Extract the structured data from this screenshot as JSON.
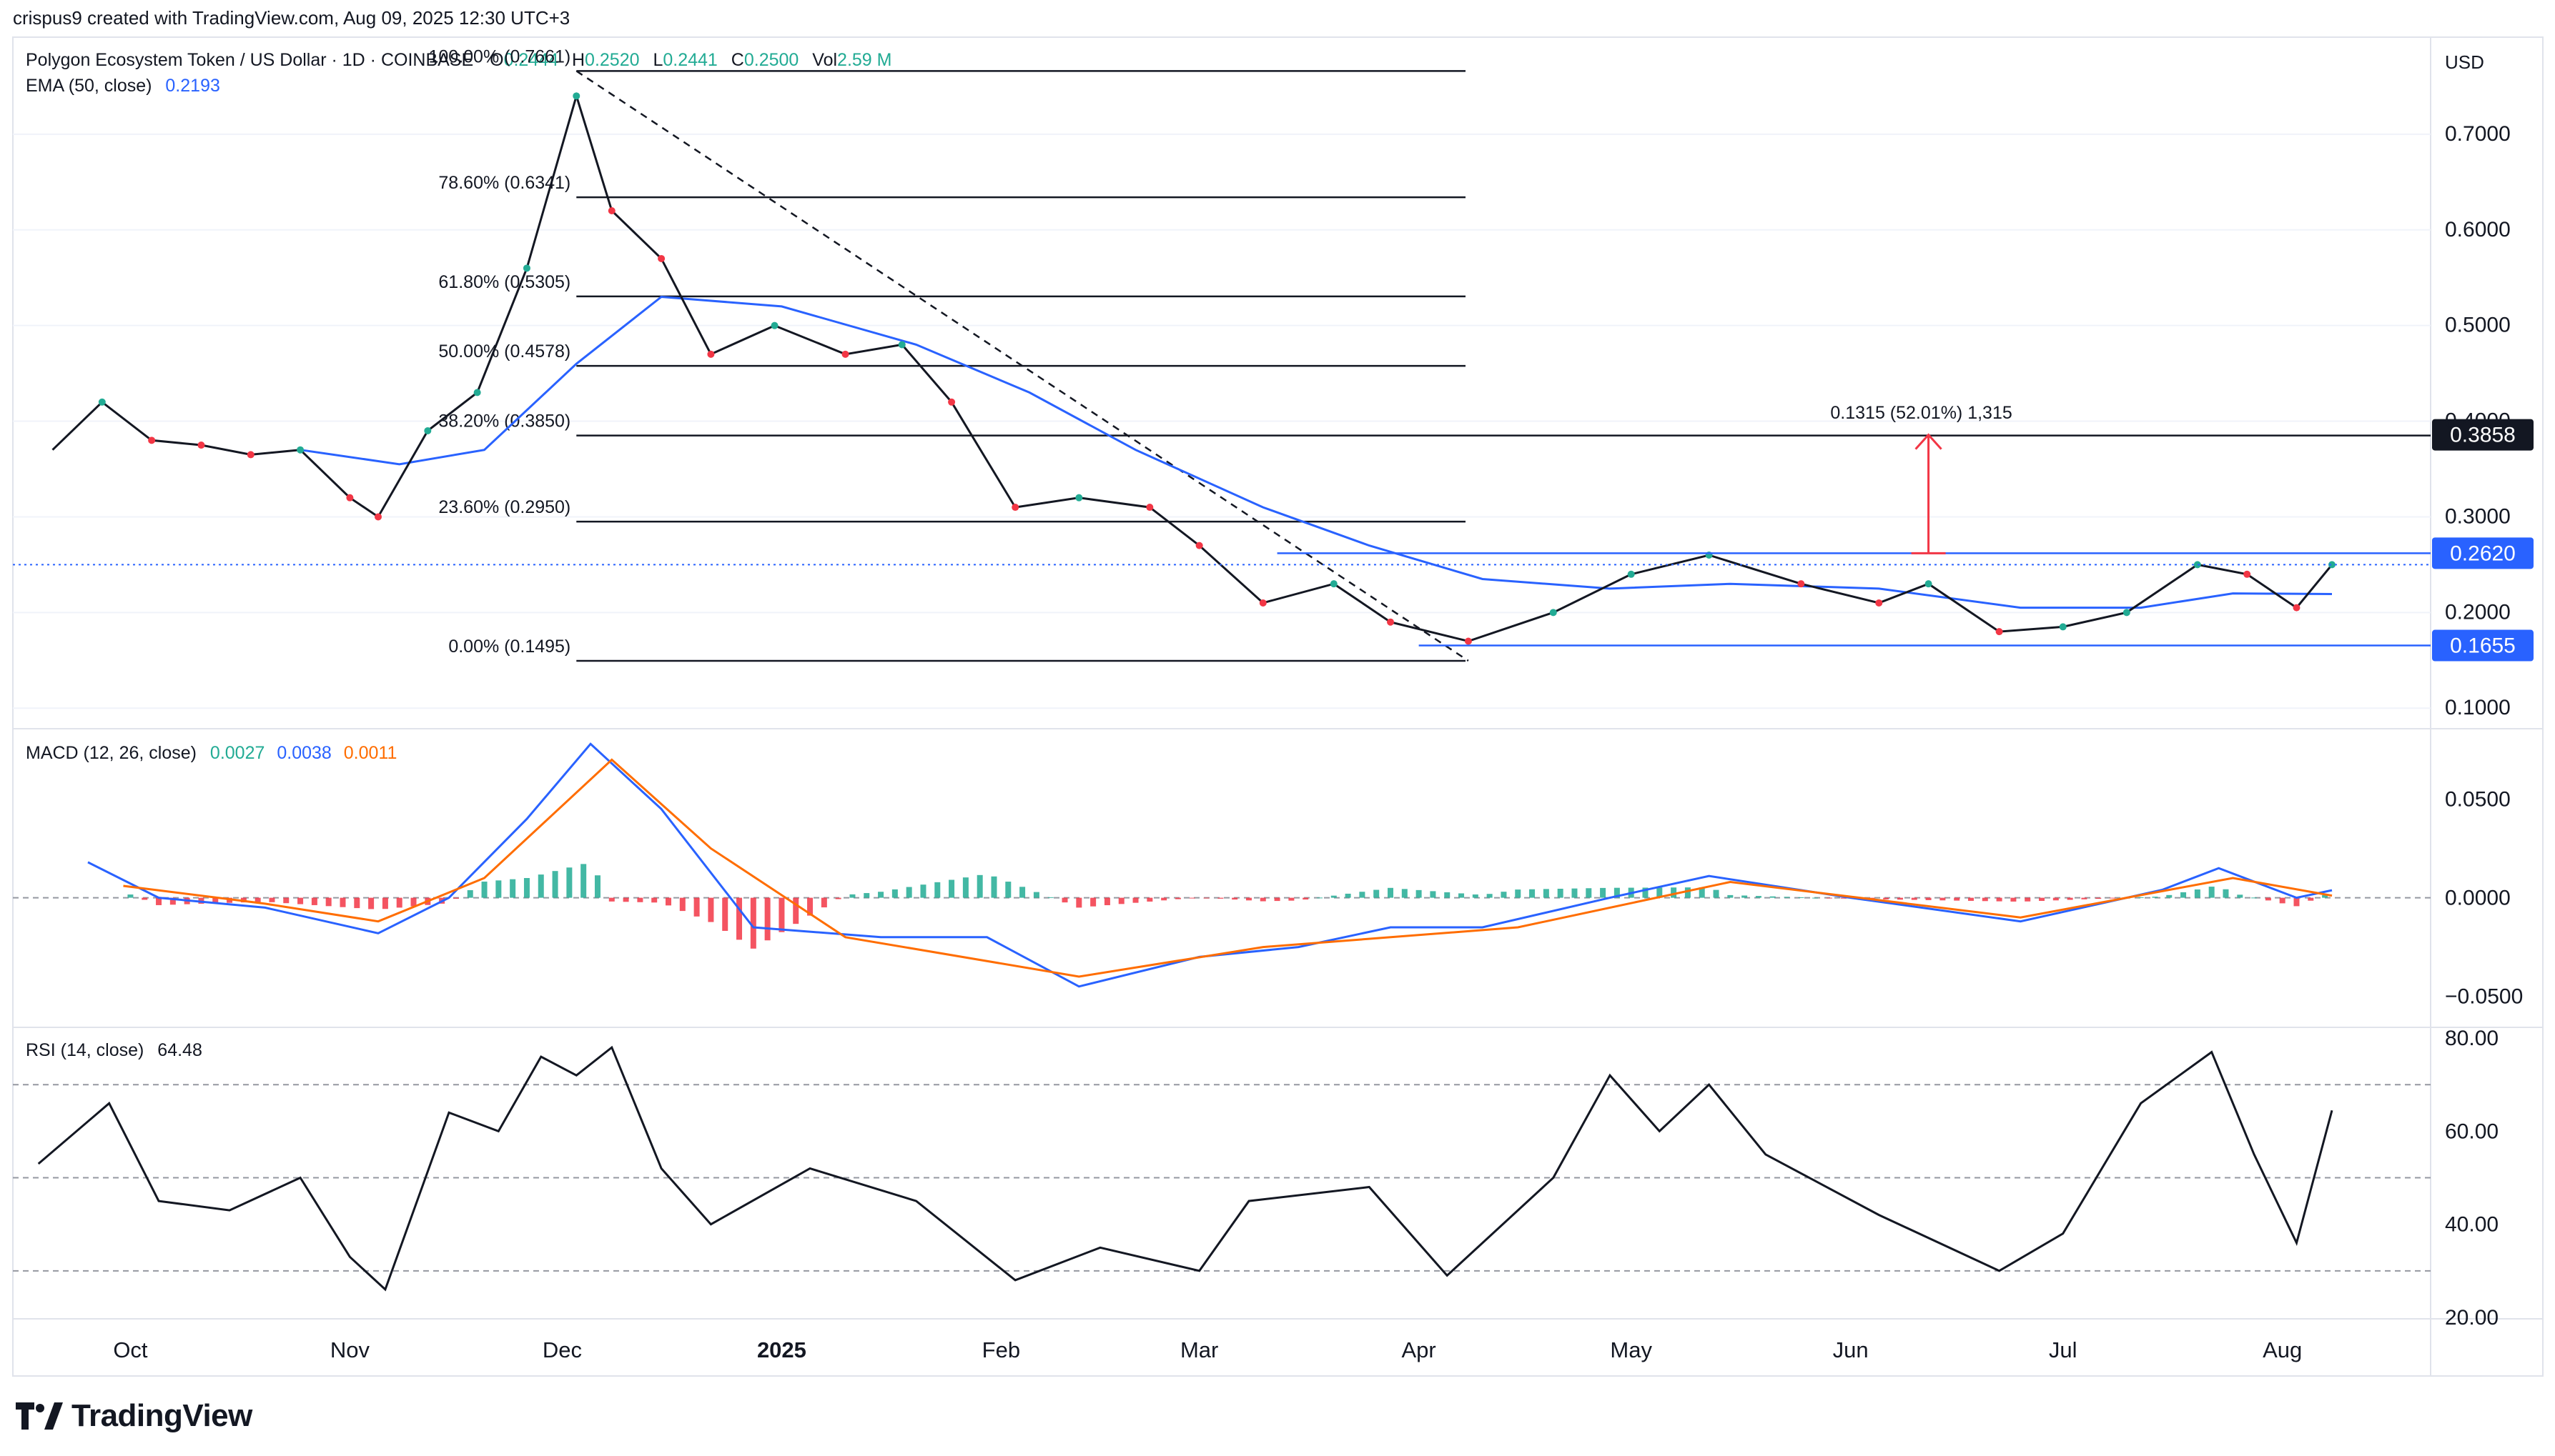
{
  "meta_line": "crispus9 created with TradingView.com, Aug 09, 2025 12:30 UTC+3",
  "currency": "USD",
  "footer_brand": "TradingView",
  "chart_data": {
    "type": "candlestick",
    "title": "Polygon Ecosystem Token / US Dollar · 1D · COINBASE",
    "ohlc": {
      "o_label": "O",
      "o": "0.2444",
      "h_label": "H",
      "h": "0.2520",
      "l_label": "L",
      "l": "0.2441",
      "c_label": "C",
      "c": "0.2500",
      "vol_label": "Vol",
      "vol": "2.59 M"
    },
    "ema_label": "EMA (50, close)",
    "ema_value": "0.2193",
    "x_labels": [
      "Oct",
      "Nov",
      "Dec",
      "2025",
      "Feb",
      "Mar",
      "Apr",
      "May",
      "Jun",
      "Jul",
      "Aug"
    ],
    "price_axis": {
      "ticks": [
        "0.7000",
        "0.6000",
        "0.5000",
        "0.4000",
        "0.3000",
        "0.2000",
        "0.1000"
      ],
      "range": [
        0.08,
        0.8
      ]
    },
    "price_badges": [
      {
        "value": "0.3858",
        "style": "dark"
      },
      {
        "value": "0.2620",
        "style": "blue"
      },
      {
        "value": "0.1655",
        "style": "blue"
      }
    ],
    "fib_levels": [
      {
        "label": "100.00% (0.7661)",
        "price": 0.7661
      },
      {
        "label": "78.60% (0.6341)",
        "price": 0.6341
      },
      {
        "label": "61.80% (0.5305)",
        "price": 0.5305
      },
      {
        "label": "50.00% (0.4578)",
        "price": 0.4578
      },
      {
        "label": "38.20% (0.3850)",
        "price": 0.385
      },
      {
        "label": "23.60% (0.2950)",
        "price": 0.295
      },
      {
        "label": "0.00% (0.1495)",
        "price": 0.1495
      }
    ],
    "measure_label": "0.1315 (52.01%) 1,315",
    "price_series": [
      {
        "d": "2024-09-20",
        "p": 0.37
      },
      {
        "d": "2024-09-27",
        "p": 0.42
      },
      {
        "d": "2024-10-04",
        "p": 0.38
      },
      {
        "d": "2024-10-11",
        "p": 0.375
      },
      {
        "d": "2024-10-18",
        "p": 0.365
      },
      {
        "d": "2024-10-25",
        "p": 0.37
      },
      {
        "d": "2024-11-01",
        "p": 0.32
      },
      {
        "d": "2024-11-05",
        "p": 0.3
      },
      {
        "d": "2024-11-12",
        "p": 0.39
      },
      {
        "d": "2024-11-19",
        "p": 0.43
      },
      {
        "d": "2024-11-26",
        "p": 0.56
      },
      {
        "d": "2024-12-03",
        "p": 0.74
      },
      {
        "d": "2024-12-08",
        "p": 0.62
      },
      {
        "d": "2024-12-15",
        "p": 0.57
      },
      {
        "d": "2024-12-22",
        "p": 0.47
      },
      {
        "d": "2024-12-31",
        "p": 0.5
      },
      {
        "d": "2025-01-10",
        "p": 0.47
      },
      {
        "d": "2025-01-18",
        "p": 0.48
      },
      {
        "d": "2025-01-25",
        "p": 0.42
      },
      {
        "d": "2025-02-03",
        "p": 0.31
      },
      {
        "d": "2025-02-12",
        "p": 0.32
      },
      {
        "d": "2025-02-22",
        "p": 0.31
      },
      {
        "d": "2025-03-01",
        "p": 0.27
      },
      {
        "d": "2025-03-10",
        "p": 0.21
      },
      {
        "d": "2025-03-20",
        "p": 0.23
      },
      {
        "d": "2025-03-28",
        "p": 0.19
      },
      {
        "d": "2025-04-08",
        "p": 0.17
      },
      {
        "d": "2025-04-20",
        "p": 0.2
      },
      {
        "d": "2025-05-01",
        "p": 0.24
      },
      {
        "d": "2025-05-12",
        "p": 0.26
      },
      {
        "d": "2025-05-25",
        "p": 0.23
      },
      {
        "d": "2025-06-05",
        "p": 0.21
      },
      {
        "d": "2025-06-12",
        "p": 0.23
      },
      {
        "d": "2025-06-22",
        "p": 0.18
      },
      {
        "d": "2025-07-01",
        "p": 0.185
      },
      {
        "d": "2025-07-10",
        "p": 0.2
      },
      {
        "d": "2025-07-20",
        "p": 0.25
      },
      {
        "d": "2025-07-27",
        "p": 0.24
      },
      {
        "d": "2025-08-03",
        "p": 0.205
      },
      {
        "d": "2025-08-08",
        "p": 0.25
      }
    ],
    "ema_series": [
      {
        "d": "2024-10-25",
        "p": 0.37
      },
      {
        "d": "2024-11-08",
        "p": 0.355
      },
      {
        "d": "2024-11-20",
        "p": 0.37
      },
      {
        "d": "2024-12-03",
        "p": 0.46
      },
      {
        "d": "2024-12-15",
        "p": 0.53
      },
      {
        "d": "2025-01-01",
        "p": 0.52
      },
      {
        "d": "2025-01-20",
        "p": 0.48
      },
      {
        "d": "2025-02-05",
        "p": 0.43
      },
      {
        "d": "2025-02-20",
        "p": 0.37
      },
      {
        "d": "2025-03-10",
        "p": 0.31
      },
      {
        "d": "2025-03-25",
        "p": 0.27
      },
      {
        "d": "2025-04-10",
        "p": 0.235
      },
      {
        "d": "2025-04-28",
        "p": 0.225
      },
      {
        "d": "2025-05-15",
        "p": 0.23
      },
      {
        "d": "2025-06-05",
        "p": 0.225
      },
      {
        "d": "2025-06-25",
        "p": 0.205
      },
      {
        "d": "2025-07-12",
        "p": 0.205
      },
      {
        "d": "2025-07-25",
        "p": 0.22
      },
      {
        "d": "2025-08-08",
        "p": 0.2193
      }
    ],
    "macd": {
      "label": "MACD (12, 26, close)",
      "values": [
        "0.0027",
        "0.0038",
        "0.0011"
      ],
      "colors": [
        "#22ab94",
        "#2962ff",
        "#ff6d00"
      ],
      "ticks": [
        "0.0500",
        "0.0000",
        "−0.0500"
      ],
      "range": [
        -0.065,
        0.085
      ],
      "macd_series": [
        {
          "d": "2024-09-25",
          "v": 0.018
        },
        {
          "d": "2024-10-05",
          "v": 0.0
        },
        {
          "d": "2024-10-20",
          "v": -0.005
        },
        {
          "d": "2024-11-05",
          "v": -0.018
        },
        {
          "d": "2024-11-15",
          "v": 0.0
        },
        {
          "d": "2024-11-26",
          "v": 0.04
        },
        {
          "d": "2024-12-05",
          "v": 0.078
        },
        {
          "d": "2024-12-15",
          "v": 0.045
        },
        {
          "d": "2024-12-28",
          "v": -0.015
        },
        {
          "d": "2025-01-15",
          "v": -0.02
        },
        {
          "d": "2025-01-30",
          "v": -0.02
        },
        {
          "d": "2025-02-12",
          "v": -0.045
        },
        {
          "d": "2025-03-01",
          "v": -0.03
        },
        {
          "d": "2025-03-15",
          "v": -0.025
        },
        {
          "d": "2025-03-28",
          "v": -0.015
        },
        {
          "d": "2025-04-10",
          "v": -0.015
        },
        {
          "d": "2025-04-28",
          "v": 0.0
        },
        {
          "d": "2025-05-12",
          "v": 0.011
        },
        {
          "d": "2025-06-01",
          "v": 0.0
        },
        {
          "d": "2025-06-25",
          "v": -0.012
        },
        {
          "d": "2025-07-15",
          "v": 0.004
        },
        {
          "d": "2025-07-23",
          "v": 0.015
        },
        {
          "d": "2025-08-03",
          "v": 0.0
        },
        {
          "d": "2025-08-08",
          "v": 0.0038
        }
      ],
      "signal_series": [
        {
          "d": "2024-09-30",
          "v": 0.006
        },
        {
          "d": "2024-10-20",
          "v": -0.003
        },
        {
          "d": "2024-11-05",
          "v": -0.012
        },
        {
          "d": "2024-11-20",
          "v": 0.01
        },
        {
          "d": "2024-12-08",
          "v": 0.07
        },
        {
          "d": "2024-12-22",
          "v": 0.025
        },
        {
          "d": "2025-01-10",
          "v": -0.02
        },
        {
          "d": "2025-02-12",
          "v": -0.04
        },
        {
          "d": "2025-03-10",
          "v": -0.025
        },
        {
          "d": "2025-04-15",
          "v": -0.015
        },
        {
          "d": "2025-05-15",
          "v": 0.008
        },
        {
          "d": "2025-06-25",
          "v": -0.01
        },
        {
          "d": "2025-07-25",
          "v": 0.01
        },
        {
          "d": "2025-08-08",
          "v": 0.0011
        }
      ]
    },
    "rsi": {
      "label": "RSI (14, close)",
      "value": "64.48",
      "ticks": [
        "80.00",
        "60.00",
        "40.00",
        "20.00"
      ],
      "range": [
        20,
        82
      ],
      "bands": [
        70,
        50,
        30
      ],
      "series": [
        {
          "d": "2024-09-18",
          "v": 53
        },
        {
          "d": "2024-09-28",
          "v": 66
        },
        {
          "d": "2024-10-05",
          "v": 45
        },
        {
          "d": "2024-10-15",
          "v": 43
        },
        {
          "d": "2024-10-25",
          "v": 50
        },
        {
          "d": "2024-11-01",
          "v": 33
        },
        {
          "d": "2024-11-06",
          "v": 26
        },
        {
          "d": "2024-11-15",
          "v": 64
        },
        {
          "d": "2024-11-22",
          "v": 60
        },
        {
          "d": "2024-11-28",
          "v": 76
        },
        {
          "d": "2024-12-03",
          "v": 72
        },
        {
          "d": "2024-12-08",
          "v": 78
        },
        {
          "d": "2024-12-15",
          "v": 52
        },
        {
          "d": "2024-12-22",
          "v": 40
        },
        {
          "d": "2025-01-05",
          "v": 52
        },
        {
          "d": "2025-01-20",
          "v": 45
        },
        {
          "d": "2025-02-03",
          "v": 28
        },
        {
          "d": "2025-02-15",
          "v": 35
        },
        {
          "d": "2025-03-01",
          "v": 30
        },
        {
          "d": "2025-03-08",
          "v": 45
        },
        {
          "d": "2025-03-25",
          "v": 48
        },
        {
          "d": "2025-04-05",
          "v": 29
        },
        {
          "d": "2025-04-20",
          "v": 50
        },
        {
          "d": "2025-04-28",
          "v": 72
        },
        {
          "d": "2025-05-05",
          "v": 60
        },
        {
          "d": "2025-05-12",
          "v": 70
        },
        {
          "d": "2025-05-20",
          "v": 55
        },
        {
          "d": "2025-06-05",
          "v": 42
        },
        {
          "d": "2025-06-22",
          "v": 30
        },
        {
          "d": "2025-07-01",
          "v": 38
        },
        {
          "d": "2025-07-12",
          "v": 66
        },
        {
          "d": "2025-07-22",
          "v": 77
        },
        {
          "d": "2025-07-28",
          "v": 55
        },
        {
          "d": "2025-08-03",
          "v": 36
        },
        {
          "d": "2025-08-08",
          "v": 64.48
        }
      ]
    }
  }
}
